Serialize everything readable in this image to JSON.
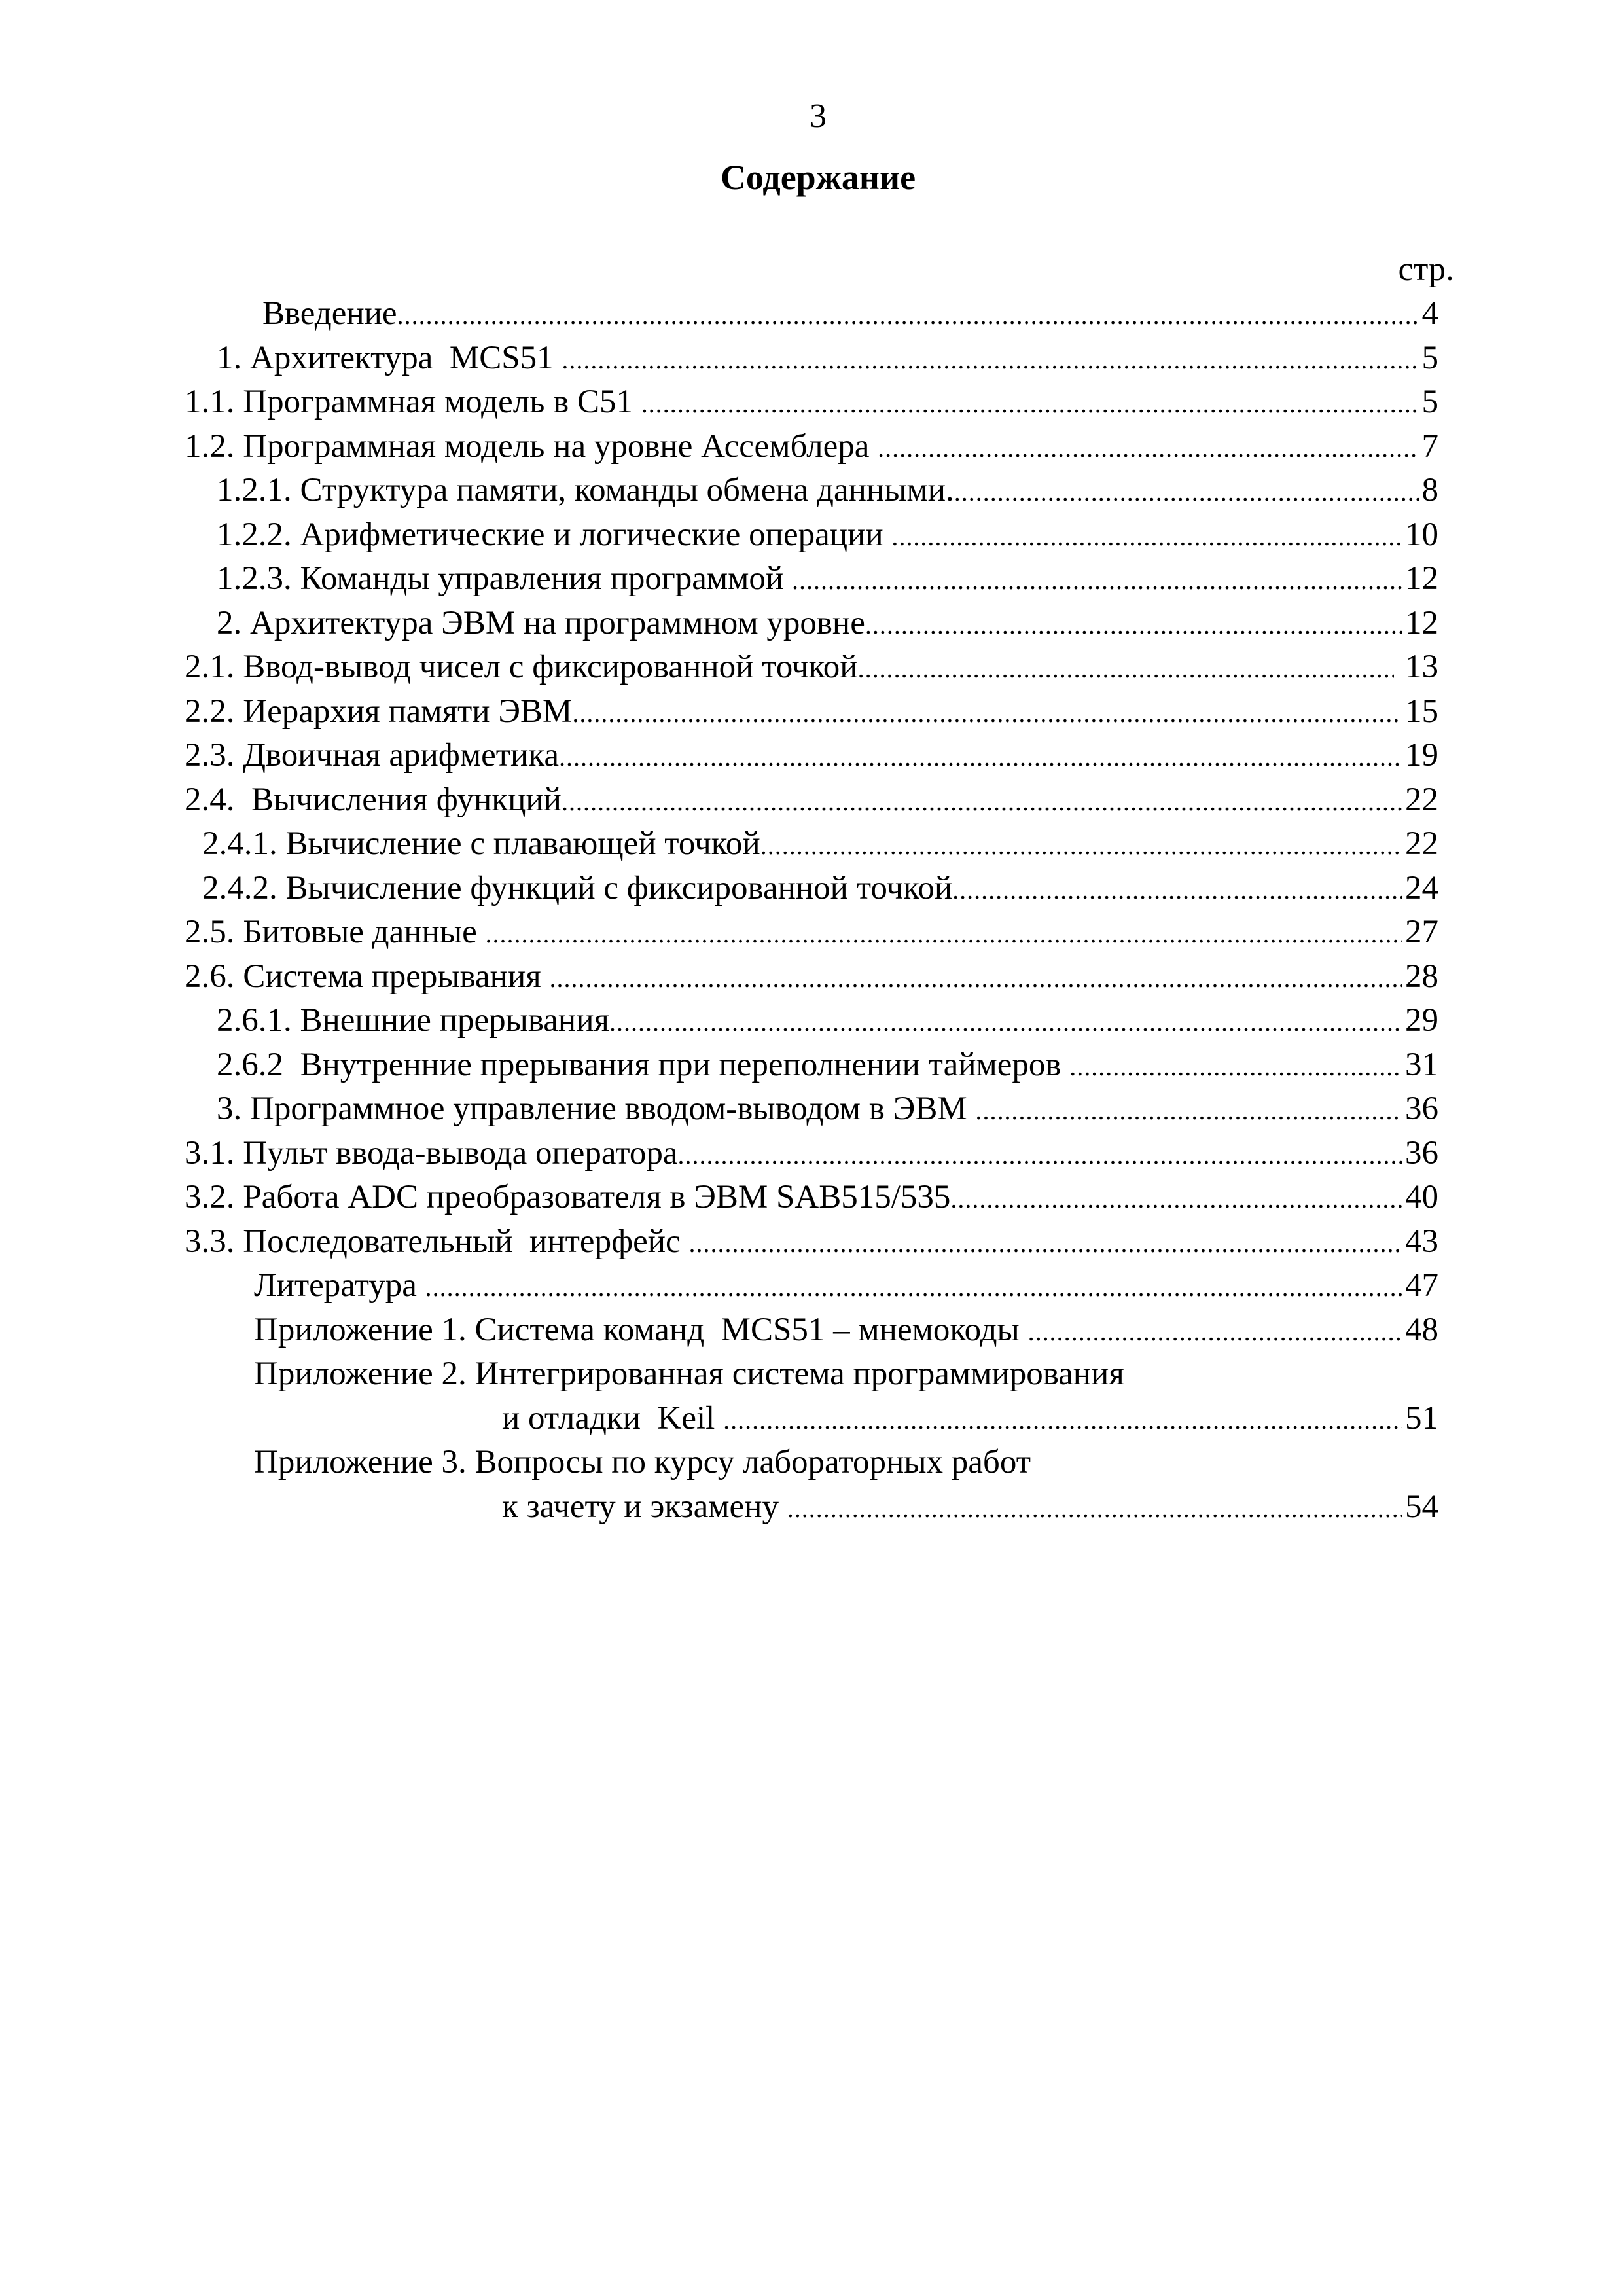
{
  "page_number": "3",
  "title": "Содержание",
  "page_col_label": "стр.",
  "entries": [
    {
      "text": "Введение",
      "page": "4",
      "indent": 401
    },
    {
      "text": "1. Архитектура  MCS51 ",
      "page": "5",
      "indent": 331
    },
    {
      "text": "1.1. Программная модель в С51 ",
      "page": "5",
      "indent": 282
    },
    {
      "text": "1.2. Программная модель на уровне Ассемблера ",
      "page": "7",
      "indent": 282
    },
    {
      "text": "1.2.1. Структура памяти, команды обмена данными.",
      "page": "8",
      "indent": 331
    },
    {
      "text": "1.2.2. Арифметические и логические операции ",
      "page": "10",
      "indent": 331
    },
    {
      "text": "1.2.3. Команды управления программой ",
      "page": "12",
      "indent": 331
    },
    {
      "text": "2. Архитектура ЭВМ на программном уровне",
      "page": "12",
      "indent": 331
    },
    {
      "text": "2.1. Ввод-вывод чисел с фиксированной точкой",
      "page": " 13",
      "indent": 282
    },
    {
      "text": "2.2. Иерархия памяти ЭВМ",
      "page": "15",
      "indent": 282
    },
    {
      "text": "2.3. Двоичная арифметика",
      "page": "19",
      "indent": 282
    },
    {
      "text": "2.4.  Вычисления функций",
      "page": "22",
      "indent": 282
    },
    {
      "text": "2.4.1. Вычисление с плавающей точкой",
      "page": "22",
      "indent": 309
    },
    {
      "text": "2.4.2. Вычисление функций с фиксированной точкой",
      "page": "24",
      "indent": 309
    },
    {
      "text": "2.5. Битовые данные ",
      "page": "27",
      "indent": 282
    },
    {
      "text": "2.6. Система прерывания ",
      "page": "28",
      "indent": 282
    },
    {
      "text": "2.6.1. Внешние прерывания",
      "page": "29",
      "indent": 331
    },
    {
      "text": "2.6.2  Внутренние прерывания при переполнении таймеров ",
      "page": "31",
      "indent": 331
    },
    {
      "text": "3. Программное управление вводом-выводом в ЭВМ ",
      "page": "36",
      "indent": 331
    },
    {
      "text": "3.1. Пульт ввода-вывода оператора",
      "page": "36",
      "indent": 282
    },
    {
      "text": "3.2. Работа ADC преобразователя в ЭВМ SAB515/535",
      "page": "40",
      "indent": 282
    },
    {
      "text": "3.3. Последовательный  интерфейс ",
      "page": "43",
      "indent": 282
    },
    {
      "text": "Литература ",
      "page": "47",
      "indent": 388
    },
    {
      "text": "Приложение 1. Система команд  MCS51 – мнемокоды ",
      "page": "48",
      "indent": 388
    },
    {
      "text": "Приложение 2. Интегрированная система программирования",
      "page": null,
      "indent": 388
    },
    {
      "text": "и отладки  Keil ",
      "page": "51",
      "indent": 767
    },
    {
      "text": "Приложение 3. Вопросы по курсу лабораторных работ",
      "page": null,
      "indent": 388
    },
    {
      "text": "к зачету и экзамену ",
      "page": "54",
      "indent": 767
    }
  ]
}
